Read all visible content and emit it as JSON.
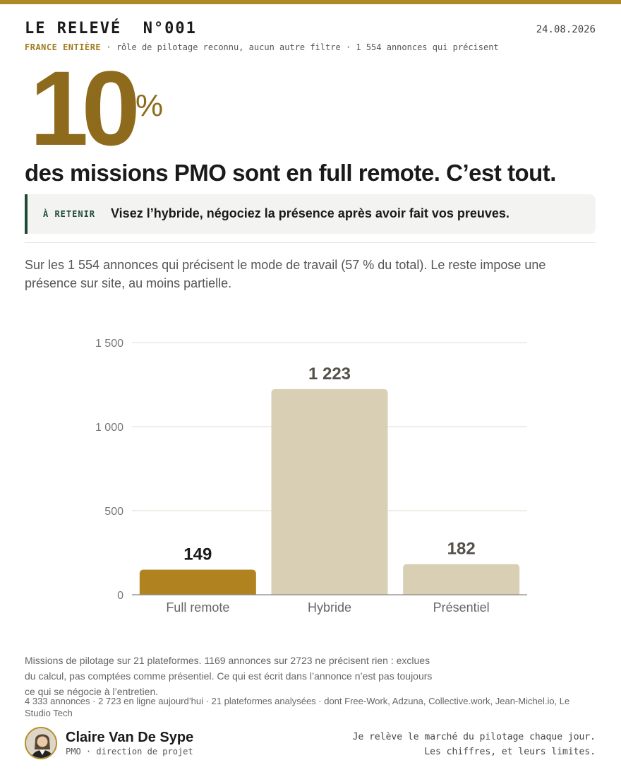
{
  "header": {
    "title": "LE RELEVÉ  N°001",
    "date": "24.08.2026",
    "subline_strong": "FRANCE ENTIÈRE",
    "subline_rest": " · rôle de pilotage reconnu, aucun autre filtre · 1 554 annonces qui précisent"
  },
  "hero": {
    "number": "10",
    "percent": "%",
    "headline": "des missions PMO sont en full remote. C’est tout."
  },
  "callout": {
    "tag": "À RETENIR",
    "text": "Visez l’hybride, négociez la présence après avoir fait vos preuves."
  },
  "intro": "Sur les 1 554 annonces qui précisent le mode de travail (57 % du total). Le reste impose une présence sur site, au moins partielle.",
  "colors": {
    "accent": "#b08320",
    "dark_accent": "#8d6a1c",
    "bar_muted": "#d9cfb4",
    "callout_border": "#1f4a36"
  },
  "chart_data": {
    "type": "bar",
    "categories": [
      "Full remote",
      "Hybride",
      "Présentiel"
    ],
    "values": [
      149,
      1223,
      182
    ],
    "value_labels": [
      "149",
      "1 223",
      "182"
    ],
    "highlight_index": 0,
    "ylim": [
      0,
      1500
    ],
    "yticks": [
      0,
      500,
      1000,
      1500
    ],
    "ytick_labels": [
      "0",
      "500",
      "1 000",
      "1 500"
    ],
    "grid": true,
    "title": "",
    "xlabel": "",
    "ylabel": ""
  },
  "footer": {
    "note": "Missions de pilotage sur 21 plateformes. 1169 annonces sur 2723 ne précisent rien : exclues du calcul, pas comptées comme présentiel. Ce qui est écrit dans l’annonce n’est pas toujours ce qui se négocie à l’entretien.",
    "stats": "4 333 annonces  · 2 723 en ligne aujourd’hui  · 21 plateformes analysées  · dont Free-Work, Adzuna, Collective.work, Jean-Michel.io, Le Studio Tech",
    "author_name": "Claire Van De Sype",
    "author_role": "PMO · direction de projet",
    "tagline_line1": "Je relève le marché du pilotage chaque jour.",
    "tagline_line2": "Les chiffres, et leurs limites."
  }
}
